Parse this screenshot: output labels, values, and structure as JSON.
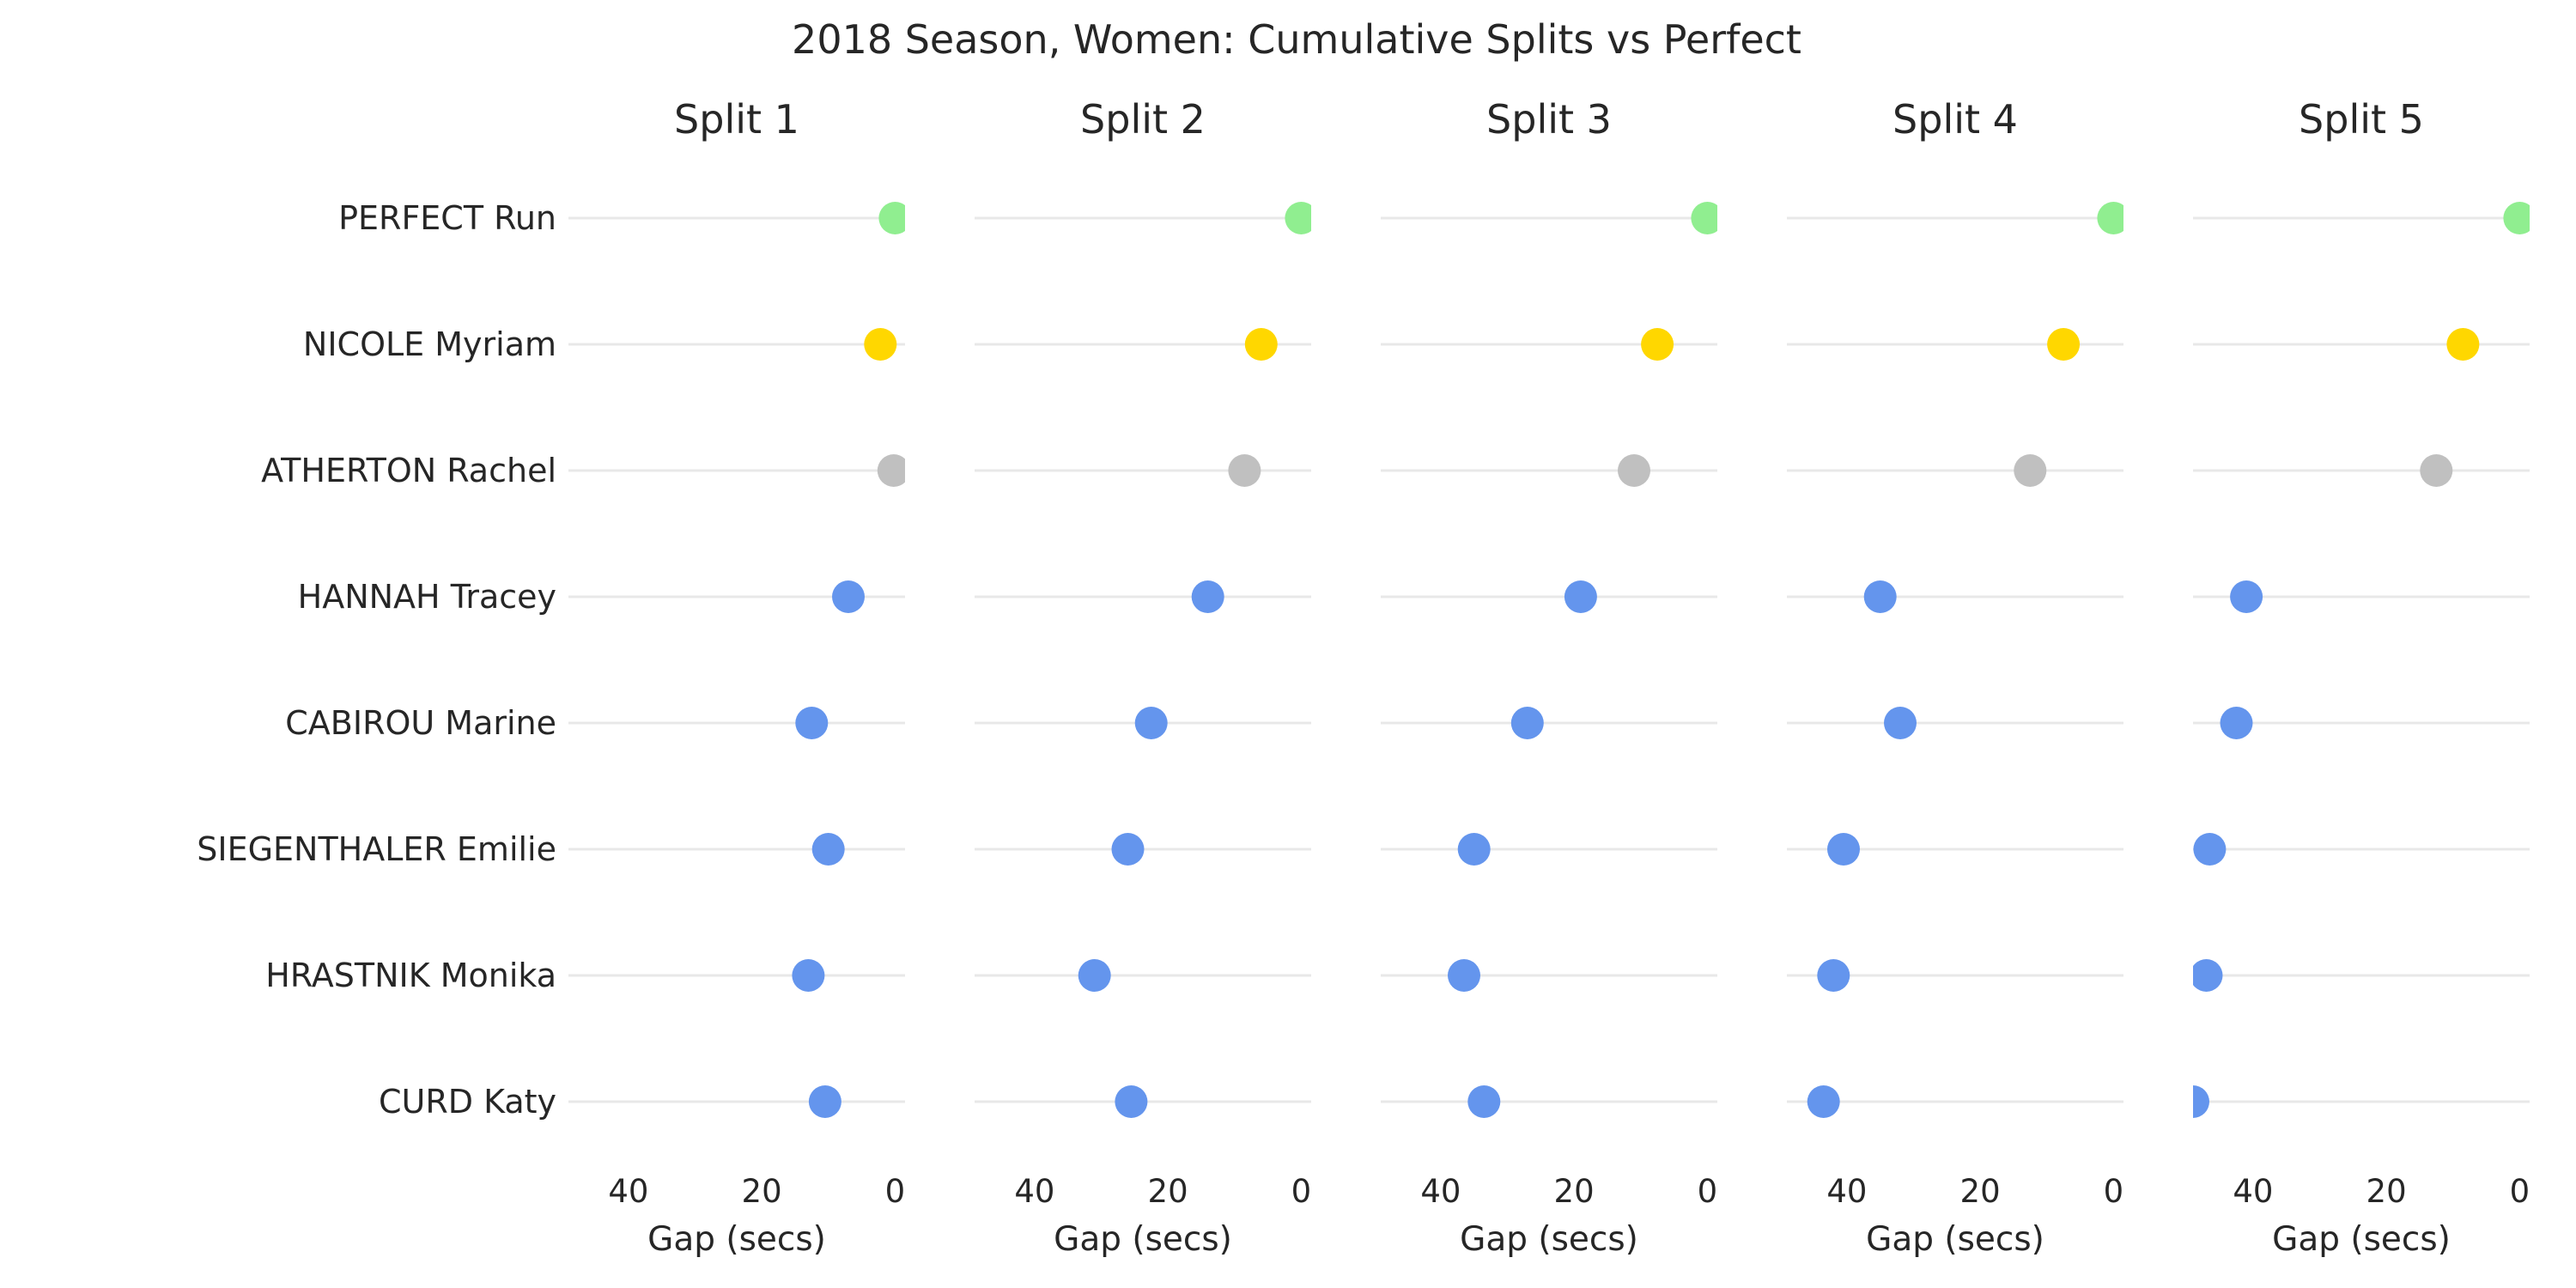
{
  "chart_data": {
    "type": "scatter",
    "title": "2018 Season, Women: Cumulative Splits vs Perfect",
    "panels": [
      "Split 1",
      "Split 2",
      "Split 3",
      "Split 4",
      "Split 5"
    ],
    "rows": [
      "PERFECT Run",
      "NICOLE Myriam",
      "ATHERTON Rachel",
      "HANNAH Tracey",
      "CABIROU Marine",
      "SIEGENTHALER Emilie",
      "HRASTNIK Monika",
      "CURD Katy"
    ],
    "xlabel": "Gap (secs)",
    "x_ticks": [
      "40",
      "20",
      "0"
    ],
    "x_tick_values": [
      40,
      20,
      0
    ],
    "xlim": [
      49,
      -1.5
    ],
    "x_reversed": true,
    "grid": "horizontal row lines",
    "series": [
      {
        "row": "PERFECT Run",
        "color": "#90ee90",
        "values": [
          0,
          0,
          0,
          0,
          0
        ]
      },
      {
        "row": "NICOLE Myriam",
        "color": "#ffd700",
        "values": [
          2.2,
          6,
          7.5,
          7.5,
          8.5
        ]
      },
      {
        "row": "ATHERTON Rachel",
        "color": "#c0c0c0",
        "values": [
          0.2,
          8.5,
          11,
          12.5,
          12.5
        ]
      },
      {
        "row": "HANNAH Tracey",
        "color": "#6495ed",
        "values": [
          7,
          14,
          19,
          35,
          41
        ]
      },
      {
        "row": "CABIROU Marine",
        "color": "#6495ed",
        "values": [
          12.5,
          22.5,
          27,
          32,
          42.5
        ]
      },
      {
        "row": "SIEGENTHALER Emilie",
        "color": "#6495ed",
        "values": [
          10,
          26,
          35,
          40.5,
          46.5
        ]
      },
      {
        "row": "HRASTNIK Monika",
        "color": "#6495ed",
        "values": [
          13,
          31,
          36.5,
          42,
          47
        ]
      },
      {
        "row": "CURD Katy",
        "color": "#6495ed",
        "values": [
          10.5,
          25.5,
          33.5,
          43.5,
          49
        ]
      }
    ]
  }
}
